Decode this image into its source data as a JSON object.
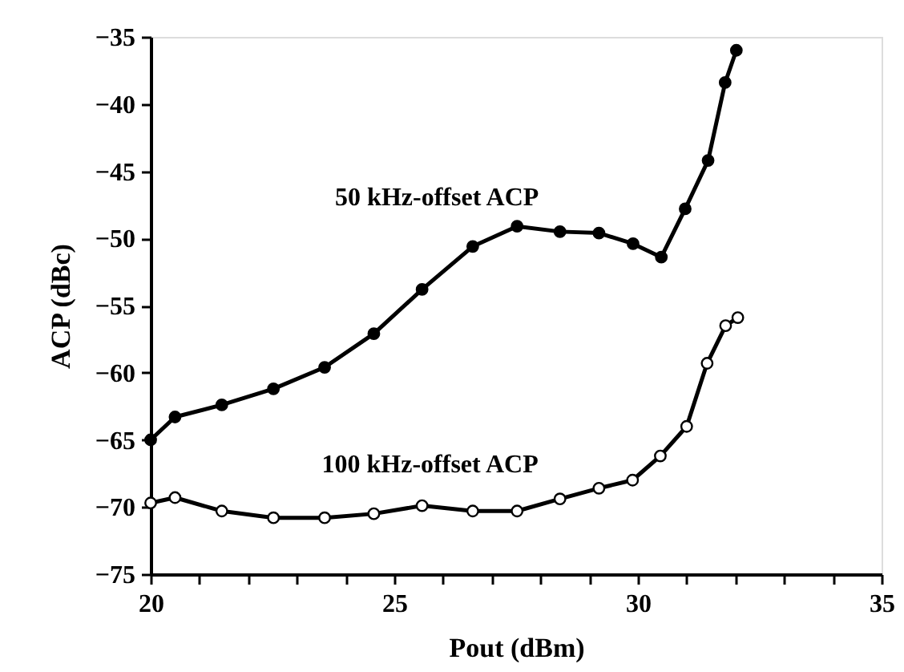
{
  "chart_data": {
    "type": "line",
    "xlabel": "Pout (dBm)",
    "ylabel": "ACP (dBc)",
    "xlim": [
      20,
      35
    ],
    "ylim": [
      -75,
      -35
    ],
    "xticks": [
      20,
      {
        "value": 21,
        "label": null
      },
      {
        "value": 22,
        "label": null
      },
      {
        "value": 23,
        "label": null
      },
      {
        "value": 24,
        "label": null
      },
      25,
      {
        "value": 26,
        "label": null
      },
      {
        "value": 27,
        "label": null
      },
      {
        "value": 28,
        "label": null
      },
      {
        "value": 29,
        "label": null
      },
      30,
      {
        "value": 31,
        "label": null
      },
      {
        "value": 32,
        "label": null
      },
      {
        "value": 33,
        "label": null
      },
      {
        "value": 34,
        "label": null
      },
      35
    ],
    "yticks": [
      -75,
      -70,
      -65,
      -60,
      -55,
      -50,
      -45,
      -40,
      -35
    ],
    "grid": false,
    "line_style": "solid",
    "series": [
      {
        "name": "50 kHz-offset ACP",
        "color": "#000000",
        "marker": "circle",
        "x": [
          20,
          20.5,
          21.46,
          22.52,
          23.57,
          24.58,
          25.57,
          26.61,
          27.52,
          28.4,
          29.2,
          29.9,
          30.48,
          30.97,
          31.44,
          31.79,
          32.02
        ],
        "values": [
          -65.0,
          -63.3,
          -62.4,
          -61.2,
          -59.6,
          -57.1,
          -53.8,
          -50.6,
          -49.1,
          -49.5,
          -49.6,
          -50.4,
          -51.4,
          -47.8,
          -44.2,
          -38.4,
          -36.0
        ]
      },
      {
        "name": "100 kHz-offset ACP",
        "color": "#000000",
        "marker": "circle",
        "x": [
          20,
          20.5,
          21.46,
          22.52,
          23.57,
          24.58,
          25.57,
          26.61,
          27.52,
          28.4,
          29.2,
          29.89,
          30.46,
          31.0,
          31.42,
          31.8,
          32.05
        ],
        "values": [
          -69.7,
          -69.3,
          -70.3,
          -70.8,
          -70.8,
          -70.5,
          -69.9,
          -70.3,
          -70.3,
          -69.4,
          -68.6,
          -68.0,
          -66.2,
          -64.0,
          -59.3,
          -56.5,
          -55.9
        ]
      }
    ]
  }
}
